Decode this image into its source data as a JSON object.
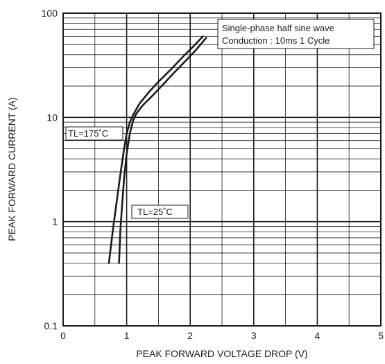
{
  "chart_data": {
    "type": "line",
    "xlabel": "PEAK FORWARD VOLTAGE DROP (V)",
    "ylabel": "PEAK FORWARD CURRENT (A)",
    "x_ticks": [
      "0",
      "1",
      "2",
      "3",
      "4",
      "5"
    ],
    "y_ticks": [
      "0.1",
      "1",
      "10",
      "100"
    ],
    "xlim": [
      0,
      5
    ],
    "ylim": [
      0.1,
      100
    ],
    "y_scale": "log",
    "grid": true,
    "note": [
      "Single-phase half sine wave",
      "Conduction : 10ms 1 Cycle"
    ],
    "series": [
      {
        "name": "TL=175˚C",
        "x": [
          0.72,
          0.78,
          0.84,
          0.9,
          0.96,
          1.0,
          1.05,
          1.1,
          1.2,
          1.35,
          1.5,
          1.7,
          1.9,
          2.05,
          2.2
        ],
        "y": [
          0.4,
          0.8,
          1.5,
          2.8,
          5.0,
          7.0,
          9.0,
          10.5,
          13.5,
          17.5,
          22,
          29,
          39,
          48,
          60
        ]
      },
      {
        "name": "TL=25˚C",
        "x": [
          0.88,
          0.9,
          0.93,
          0.96,
          1.0,
          1.05,
          1.1,
          1.15,
          1.25,
          1.4,
          1.55,
          1.75,
          1.95,
          2.1,
          2.25
        ],
        "y": [
          0.4,
          0.8,
          1.5,
          2.6,
          4.5,
          7.0,
          9.3,
          10.8,
          13.0,
          16.0,
          20,
          27,
          36,
          45,
          58
        ]
      }
    ]
  }
}
